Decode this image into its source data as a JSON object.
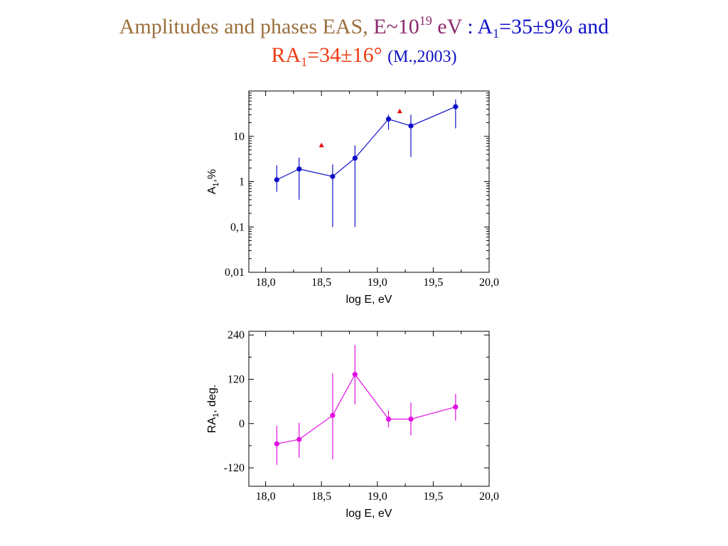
{
  "title": {
    "line1_part1": "Amplitudes and phases EAS, ",
    "line1_part2": "E~10",
    "line1_sup": "19",
    "line1_part3": " eV",
    "line1_part4": " : A",
    "line1_sub": "1",
    "line1_part5": "=35±9% and",
    "line2_part1": "RA",
    "line2_sub": "1",
    "line2_part2": "=34±16°",
    "line2_part3": "(M.,2003)",
    "colors": {
      "brown": "#9b6f3c",
      "purple": "#8b2a6e",
      "blue": "#1010c8",
      "red": "#ee3b12"
    }
  },
  "chart_data": [
    {
      "type": "scatter",
      "name": "amplitude",
      "y_scale": "log",
      "xlabel": "log E, eV",
      "ylabel_main": "A",
      "ylabel_sub": "1",
      "ylabel_rest": ",%",
      "xlim": [
        17.85,
        20.0
      ],
      "ylim": [
        0.01,
        100
      ],
      "x_ticks": [
        18.0,
        18.5,
        19.0,
        19.5,
        20.0
      ],
      "x_tick_labels": [
        "18,0",
        "18,5",
        "19,0",
        "19,5",
        "20,0"
      ],
      "y_ticks": [
        0.01,
        0.1,
        1,
        10
      ],
      "y_tick_labels": [
        "0,01",
        "0,1",
        "1",
        "10"
      ],
      "color": "#1010c8",
      "x": [
        18.1,
        18.3,
        18.6,
        18.8,
        19.1,
        19.3,
        19.7
      ],
      "y": [
        1.1,
        1.9,
        1.3,
        3.3,
        24,
        17,
        45
      ],
      "y_low": [
        0.6,
        0.4,
        0.1,
        0.1,
        14,
        3.5,
        15
      ],
      "y_high": [
        2.3,
        3.4,
        2.4,
        6.3,
        30,
        30,
        65
      ],
      "extra_series": {
        "marker": "triangle",
        "color": "#e01010",
        "x": [
          18.5,
          19.2
        ],
        "y": [
          6.4,
          36
        ]
      }
    },
    {
      "type": "scatter",
      "name": "phase",
      "xlabel": "log E, eV",
      "ylabel_main": "RA",
      "ylabel_sub": "1",
      "ylabel_rest": ", deg.",
      "xlim": [
        17.85,
        20.0
      ],
      "ylim": [
        -170,
        250
      ],
      "x_ticks": [
        18.0,
        18.5,
        19.0,
        19.5,
        20.0
      ],
      "x_tick_labels": [
        "18,0",
        "18,5",
        "19,0",
        "19,5",
        "20,0"
      ],
      "y_ticks": [
        -120,
        0,
        120,
        240
      ],
      "y_tick_labels": [
        "-120",
        "0",
        "120",
        "240"
      ],
      "color": "#e010e0",
      "x": [
        18.1,
        18.3,
        18.6,
        18.8,
        19.1,
        19.3,
        19.7
      ],
      "y": [
        -55,
        -43,
        22,
        133,
        12,
        12,
        45
      ],
      "y_low": [
        -112,
        -93,
        -97,
        52,
        -10,
        -32,
        8
      ],
      "y_high": [
        -6,
        2,
        136,
        213,
        35,
        57,
        80
      ]
    }
  ]
}
